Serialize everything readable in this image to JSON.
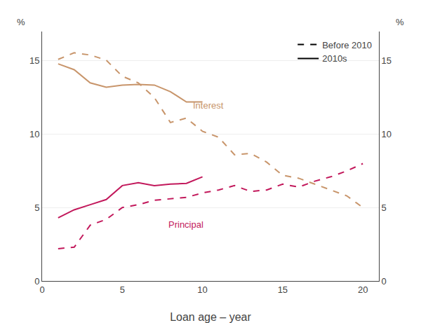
{
  "chart_data": {
    "type": "line",
    "x_label": "Loan age – year",
    "y_label": "%",
    "y2_label": "%",
    "series": [
      {
        "color": "#C8956B",
        "line_style": "dashed",
        "x": [
          1,
          2,
          3,
          4,
          5,
          6,
          7,
          8,
          9,
          10,
          11,
          12,
          13,
          14,
          15,
          16,
          17,
          18,
          19,
          20
        ],
        "values": [
          15.1,
          15.55,
          15.4,
          15.05,
          13.95,
          13.5,
          12.5,
          10.8,
          11.1,
          10.2,
          9.8,
          8.6,
          8.7,
          8.1,
          7.2,
          7.0,
          6.6,
          6.2,
          5.8,
          5.0
        ]
      },
      {
        "color": "#C8956B",
        "line_style": "solid",
        "x": [
          1,
          2,
          3,
          4,
          5,
          6,
          7,
          8,
          9,
          10
        ],
        "values": [
          14.8,
          14.4,
          13.5,
          13.2,
          13.35,
          13.4,
          13.35,
          12.9,
          12.2,
          12.2
        ]
      },
      {
        "color": "#C2185B",
        "line_style": "dashed",
        "x": [
          1,
          2,
          3,
          4,
          5,
          6,
          7,
          8,
          9,
          10,
          11,
          12,
          13,
          14,
          15,
          16,
          17,
          18,
          19,
          20
        ],
        "values": [
          2.2,
          2.3,
          3.8,
          4.2,
          5.0,
          5.2,
          5.5,
          5.6,
          5.7,
          6.0,
          6.2,
          6.5,
          6.1,
          6.2,
          6.6,
          6.4,
          6.8,
          7.1,
          7.5,
          8.0
        ]
      },
      {
        "color": "#C2185B",
        "line_style": "solid",
        "x": [
          1,
          2,
          3,
          4,
          5,
          6,
          7,
          8,
          9,
          10
        ],
        "values": [
          4.3,
          4.85,
          5.2,
          5.55,
          6.5,
          6.7,
          6.5,
          6.6,
          6.65,
          7.1
        ]
      }
    ],
    "legend_entries": [
      {
        "name": "Before 2010",
        "color": "#000000",
        "line_style": "dashed"
      },
      {
        "name": "2010s",
        "color": "#000000",
        "line_style": "solid"
      }
    ],
    "annotations": [
      {
        "text": "Interest",
        "x": 9.3,
        "y": 11.5,
        "color": "#C8956B"
      },
      {
        "text": "Principal",
        "x": 7.8,
        "y": 4.3,
        "color": "#C2185B"
      }
    ],
    "xlim": [
      0,
      21
    ],
    "xticks": [
      0,
      5,
      10,
      15,
      20
    ],
    "ylim": [
      0,
      17
    ],
    "yticks": [
      0,
      5,
      10,
      15
    ],
    "y2lim": [
      0,
      17
    ],
    "y2ticks": [
      0,
      5,
      10,
      15
    ],
    "grid": true,
    "legend": "upper right"
  }
}
